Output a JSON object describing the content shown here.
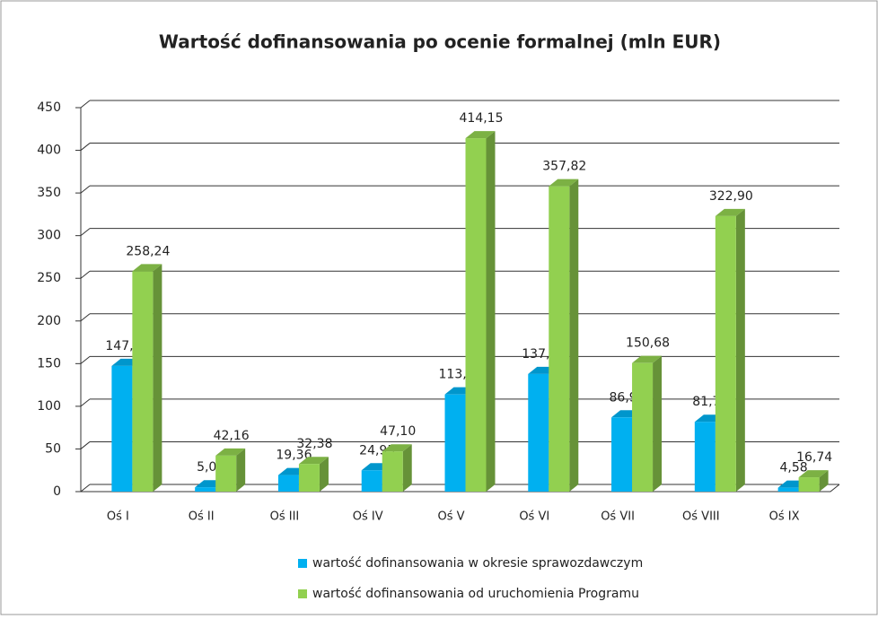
{
  "chart_data": {
    "type": "bar",
    "title": "Wartość dofinansowania po ocenie formalnej (mln EUR)",
    "categories": [
      "Oś I",
      "Oś II",
      "Oś III",
      "Oś IV",
      "Oś V",
      "Oś VI",
      "Oś VII",
      "Oś VIII",
      "Oś IX"
    ],
    "series": [
      {
        "name": "wartość dofinansowania w okresie sprawozdawczym",
        "color": "#00b0f0",
        "values": [
          147.28,
          5.05,
          19.36,
          24.95,
          113.88,
          137.89,
          86.95,
          81.78,
          4.58
        ],
        "value_labels": [
          "147,28",
          "5,05",
          "19,36",
          "24,95",
          "113,88",
          "137,89",
          "86,95",
          "81,78",
          "4,58"
        ]
      },
      {
        "name": "wartość dofinansowania od uruchomienia Programu",
        "color": "#92d050",
        "values": [
          258.24,
          42.16,
          32.38,
          47.1,
          414.15,
          357.82,
          150.68,
          322.9,
          16.74
        ],
        "value_labels": [
          "258,24",
          "42,16",
          "32,38",
          "47,10",
          "414,15",
          "357,82",
          "150,68",
          "322,90",
          "16,74"
        ]
      }
    ],
    "ylim": [
      0,
      450
    ],
    "yticks": [
      0,
      50,
      100,
      150,
      200,
      250,
      300,
      350,
      400,
      450
    ],
    "grid": true
  }
}
